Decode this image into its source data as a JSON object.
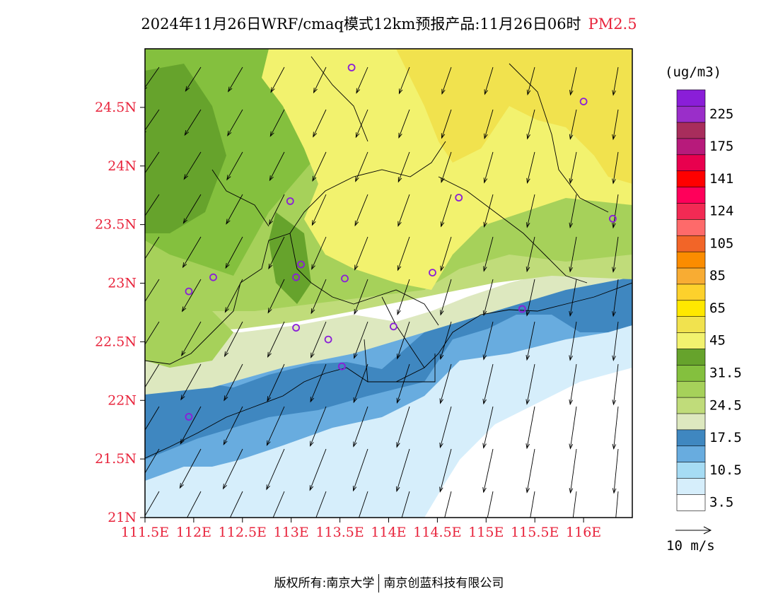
{
  "title": {
    "main": "2024年11月26日WRF/cmaq模式12km预报产品:11月26日06时",
    "species": "PM2.5"
  },
  "map": {
    "lat_ticks": [
      "21N",
      "21.5N",
      "22N",
      "22.5N",
      "23N",
      "23.5N",
      "24N",
      "24.5N"
    ],
    "lon_ticks": [
      "111.5E",
      "112E",
      "112.5E",
      "113E",
      "113.5E",
      "114E",
      "114.5E",
      "115E",
      "115.5E",
      "116E"
    ],
    "lon_range": [
      111.5,
      116.5
    ],
    "lat_range": [
      21,
      25
    ],
    "wind_direction": "northerly to north-northeasterly",
    "station_marker_color": "#8a1ed8"
  },
  "colorbar": {
    "unit": "(ug/m3)",
    "levels": [
      {
        "color": "#ffffff",
        "label": "3.5"
      },
      {
        "color": "#d6eefb",
        "label": ""
      },
      {
        "color": "#a6dcf4",
        "label": "10.5"
      },
      {
        "color": "#68acdf",
        "label": ""
      },
      {
        "color": "#3f87c0",
        "label": "17.5"
      },
      {
        "color": "#dde8bf",
        "label": ""
      },
      {
        "color": "#c0dc7a",
        "label": "24.5"
      },
      {
        "color": "#a6d15a",
        "label": ""
      },
      {
        "color": "#84c03e",
        "label": "31.5"
      },
      {
        "color": "#66a32c",
        "label": ""
      },
      {
        "color": "#f2f26e",
        "label": "45"
      },
      {
        "color": "#f1e24e",
        "label": ""
      },
      {
        "color": "#ffe800",
        "label": "65"
      },
      {
        "color": "#fdd12c",
        "label": ""
      },
      {
        "color": "#f8ac33",
        "label": "85"
      },
      {
        "color": "#fb8c00",
        "label": ""
      },
      {
        "color": "#f26528",
        "label": "105"
      },
      {
        "color": "#fe6a6a",
        "label": ""
      },
      {
        "color": "#f22a54",
        "label": "124"
      },
      {
        "color": "#ff005a",
        "label": ""
      },
      {
        "color": "#ff0000",
        "label": "141"
      },
      {
        "color": "#e8004e",
        "label": ""
      },
      {
        "color": "#b71a7b",
        "label": "175"
      },
      {
        "color": "#a82d5c",
        "label": ""
      },
      {
        "color": "#9a2ec9",
        "label": "225"
      },
      {
        "color": "#8a1ed8",
        "label": ""
      }
    ]
  },
  "wind_legend": {
    "label": "10 m/s"
  },
  "footer": {
    "left": "版权所有:南京大学",
    "right": "南京创蓝科技有限公司"
  }
}
